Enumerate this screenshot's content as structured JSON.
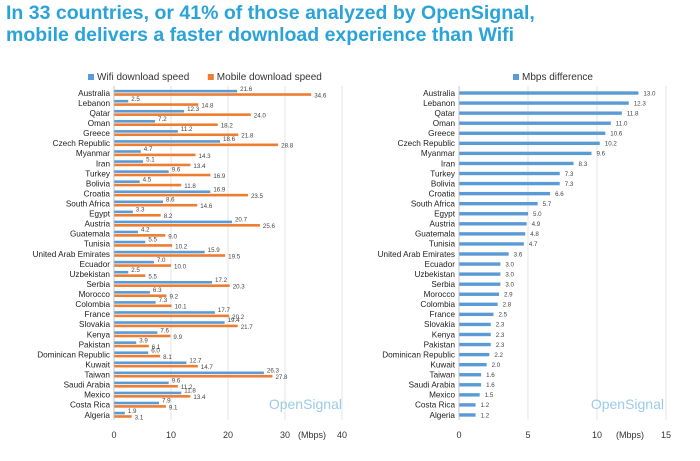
{
  "headline": {
    "line1": "In 33 countries, or 41% of those analyzed by OpenSignal,",
    "line2": "mobile delivers a faster download experience than Wifi"
  },
  "colors": {
    "wifi": "#5b9bd5",
    "mobile": "#ed7d31",
    "difference": "#5b9bd5",
    "headline": "#2aa3d8",
    "watermark": "#9ccbe6"
  },
  "chart_data": [
    {
      "type": "bar",
      "orientation": "horizontal",
      "categories": [
        "Australia",
        "Lebanon",
        "Qatar",
        "Oman",
        "Greece",
        "Czech Republic",
        "Myanmar",
        "Iran",
        "Turkey",
        "Bolivia",
        "Croatia",
        "South Africa",
        "Egypt",
        "Austria",
        "Guatemala",
        "Tunisia",
        "United Arab Emirates",
        "Ecuador",
        "Uzbekistan",
        "Serbia",
        "Morocco",
        "Colombia",
        "France",
        "Slovakia",
        "Kenya",
        "Pakistan",
        "Dominican Republic",
        "Kuwait",
        "Taiwan",
        "Saudi Arabia",
        "Mexico",
        "Costa Rica",
        "Algeria"
      ],
      "series": [
        {
          "name": "Wifi download speed",
          "values": [
            21.6,
            2.5,
            12.3,
            7.2,
            11.2,
            18.6,
            4.7,
            5.1,
            9.6,
            4.5,
            16.9,
            8.6,
            3.3,
            20.7,
            4.2,
            5.5,
            15.9,
            7.0,
            2.5,
            17.2,
            6.3,
            7.3,
            17.7,
            19.4,
            7.6,
            3.9,
            6.0,
            12.7,
            26.3,
            9.6,
            11.8,
            7.9,
            1.9
          ]
        },
        {
          "name": "Mobile download speed",
          "values": [
            34.6,
            14.8,
            24.0,
            18.2,
            21.8,
            28.8,
            14.3,
            13.4,
            16.9,
            11.8,
            23.5,
            14.6,
            8.2,
            25.6,
            9.0,
            10.2,
            19.5,
            10.0,
            5.5,
            20.3,
            9.2,
            10.1,
            20.2,
            21.7,
            9.9,
            6.1,
            8.1,
            14.7,
            27.8,
            11.2,
            13.4,
            9.1,
            3.1
          ]
        }
      ],
      "xlabel": "(Mbps)",
      "xlim": [
        0,
        40
      ],
      "xticks": [
        0,
        10,
        20,
        30,
        40
      ],
      "legend_position": "top",
      "watermark": "OpenSignal"
    },
    {
      "type": "bar",
      "orientation": "horizontal",
      "categories": [
        "Australia",
        "Lebanon",
        "Qatar",
        "Oman",
        "Greece",
        "Czech Republic",
        "Myanmar",
        "Iran",
        "Turkey",
        "Bolivia",
        "Croatia",
        "South Africa",
        "Egypt",
        "Austria",
        "Guatemala",
        "Tunisia",
        "United Arab Emirates",
        "Ecuador",
        "Uzbekistan",
        "Serbia",
        "Morocco",
        "Colombia",
        "France",
        "Slovakia",
        "Kenya",
        "Pakistan",
        "Dominican Republic",
        "Kuwait",
        "Taiwan",
        "Saudi Arabia",
        "Mexico",
        "Costa Rica",
        "Algeria"
      ],
      "series": [
        {
          "name": "Mbps difference",
          "values": [
            13.0,
            12.3,
            11.8,
            11.0,
            10.6,
            10.2,
            9.6,
            8.3,
            7.3,
            7.3,
            6.6,
            5.7,
            5.0,
            4.9,
            4.8,
            4.7,
            3.6,
            3.0,
            3.0,
            3.0,
            2.9,
            2.8,
            2.5,
            2.3,
            2.3,
            2.3,
            2.2,
            2.0,
            1.6,
            1.6,
            1.5,
            1.2,
            1.2
          ]
        }
      ],
      "xlabel": "(Mbps)",
      "xlim": [
        0,
        15
      ],
      "xticks": [
        0,
        5,
        10,
        15
      ],
      "legend_position": "top",
      "watermark": "OpenSignal"
    }
  ]
}
